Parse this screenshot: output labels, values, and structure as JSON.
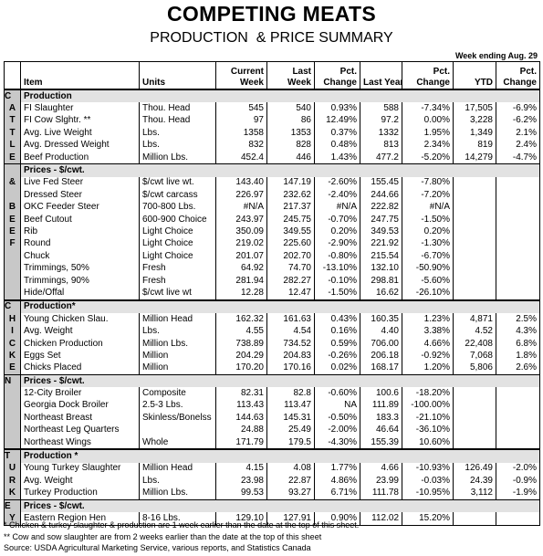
{
  "header": {
    "title": "COMPETING MEATS",
    "subtitle": "PRODUCTION  & PRICE SUMMARY",
    "week": "Week ending Aug. 29"
  },
  "table": {
    "columns": [
      [
        "Item"
      ],
      [
        "Units"
      ],
      [
        "Current",
        "Week"
      ],
      [
        "Last",
        "Week"
      ],
      [
        "Pct.",
        "Change"
      ],
      [
        "Last Year"
      ],
      [
        "Pct.",
        "Change"
      ],
      [
        "YTD"
      ],
      [
        "Pct.",
        "Change"
      ]
    ],
    "groups": [
      {
        "rows": [
          {
            "side": "C",
            "cells": [
              "Production"
            ]
          },
          {
            "side": "A",
            "cells": [
              "FI Slaughter",
              "Thou. Head",
              "545",
              "540",
              "0.93%",
              "588",
              "-7.34%",
              "17,505",
              "-6.9%"
            ]
          },
          {
            "side": "T",
            "cells": [
              "FI Cow Slghtr. **",
              "Thou. Head",
              "97",
              "86",
              "12.49%",
              "97.2",
              "0.00%",
              "3,228",
              "-6.2%"
            ]
          },
          {
            "side": "T",
            "cells": [
              "Avg. Live Weight",
              "Lbs.",
              "1358",
              "1353",
              "0.37%",
              "1332",
              "1.95%",
              "1,349",
              "2.1%"
            ]
          },
          {
            "side": "L",
            "cells": [
              "Avg. Dressed Weight",
              "Lbs.",
              "832",
              "828",
              "0.48%",
              "813",
              "2.34%",
              "819",
              "2.4%"
            ]
          },
          {
            "side": "E",
            "cells": [
              "Beef Production",
              "Million Lbs.",
              "452.4",
              "446",
              "1.43%",
              "477.2",
              "-5.20%",
              "14,279",
              "-4.7%"
            ]
          },
          {
            "cells": [
              "Prices - $/cwt."
            ]
          },
          {
            "side": "&",
            "cells": [
              "Live Fed Steer",
              "$/cwt live wt.",
              "143.40",
              "147.19",
              "-2.60%",
              "155.45",
              "-7.80%"
            ]
          },
          {
            "cells": [
              "Dressed Steer",
              "$/cwt carcass",
              "226.97",
              "232.62",
              "-2.40%",
              "244.66",
              "-7.20%"
            ]
          },
          {
            "side": "B",
            "cells": [
              "OKC Feeder Steer",
              "700-800 Lbs.",
              "#N/A",
              "217.37",
              "#N/A",
              "222.82",
              "#N/A"
            ]
          },
          {
            "side": "E",
            "cells": [
              "Beef Cutout",
              "600-900 Choice",
              "243.97",
              "245.75",
              "-0.70%",
              "247.75",
              "-1.50%"
            ]
          },
          {
            "side": "E",
            "cells": [
              "Rib",
              "Light Choice",
              "350.09",
              "349.55",
              "0.20%",
              "349.53",
              "0.20%"
            ]
          },
          {
            "side": "F",
            "cells": [
              "Round",
              "Light Choice",
              "219.02",
              "225.60",
              "-2.90%",
              "221.92",
              "-1.30%"
            ]
          },
          {
            "cells": [
              "Chuck",
              "Light Choice",
              "201.07",
              "202.70",
              "-0.80%",
              "215.54",
              "-6.70%"
            ]
          },
          {
            "cells": [
              "Trimmings, 50%",
              "Fresh",
              "64.92",
              "74.70",
              "-13.10%",
              "132.10",
              "-50.90%"
            ]
          },
          {
            "cells": [
              "Trimmings, 90%",
              "Fresh",
              "281.94",
              "282.27",
              "-0.10%",
              "298.81",
              "-5.60%"
            ]
          },
          {
            "cells": [
              "Hide/Offal",
              "$/cwt live wt",
              "12.28",
              "12.47",
              "-1.50%",
              "16.62",
              "-26.10%"
            ]
          }
        ]
      },
      {
        "rows": [
          {
            "side": "C",
            "cells": [
              "Production*"
            ]
          },
          {
            "side": "H",
            "cells": [
              "Young Chicken Slau.",
              "Million Head",
              "162.32",
              "161.63",
              "0.43%",
              "160.35",
              "1.23%",
              "4,871",
              "2.5%"
            ]
          },
          {
            "side": "I",
            "cells": [
              "Avg. Weight",
              "Lbs.",
              "4.55",
              "4.54",
              "0.16%",
              "4.40",
              "3.38%",
              "4.52",
              "4.3%"
            ]
          },
          {
            "side": "C",
            "cells": [
              "Chicken Production",
              "Million Lbs.",
              "738.89",
              "734.52",
              "0.59%",
              "706.00",
              "4.66%",
              "22,408",
              "6.8%"
            ]
          },
          {
            "side": "K",
            "cells": [
              "Eggs Set",
              "Million",
              "204.29",
              "204.83",
              "-0.26%",
              "206.18",
              "-0.92%",
              "7,068",
              "1.8%"
            ]
          },
          {
            "side": "E",
            "cells": [
              "Chicks Placed",
              "Million",
              "170.20",
              "170.16",
              "0.02%",
              "168.17",
              "1.20%",
              "5,806",
              "2.6%"
            ]
          },
          {
            "side": "N",
            "cells": [
              "Prices - $/cwt."
            ]
          },
          {
            "cells": [
              "12-City Broiler",
              "Composite",
              "82.31",
              "82.8",
              "-0.60%",
              "100.6",
              "-18.20%"
            ]
          },
          {
            "cells": [
              "Georgia Dock Broiler",
              "2.5-3 Lbs.",
              "113.43",
              "113.47",
              "NA",
              "111.89",
              "-100.00%"
            ]
          },
          {
            "cells": [
              "Northeast Breast",
              "Skinless/Bonelss",
              "144.63",
              "145.31",
              "-0.50%",
              "183.3",
              "-21.10%"
            ]
          },
          {
            "cells": [
              "Northeast Leg Quarters",
              null,
              "24.88",
              "25.49",
              "-2.00%",
              "46.64",
              "-36.10%"
            ]
          },
          {
            "cells": [
              "Northeast Wings",
              "Whole",
              "171.79",
              "179.5",
              "-4.30%",
              "155.39",
              "10.60%"
            ]
          }
        ]
      },
      {
        "rows": [
          {
            "side": "T",
            "cells": [
              "Production *"
            ]
          },
          {
            "side": "U",
            "cells": [
              "Young Turkey Slaughter",
              "Million Head",
              "4.15",
              "4.08",
              "1.77%",
              "4.66",
              "-10.93%",
              "126.49",
              "-2.0%"
            ]
          },
          {
            "side": "R",
            "cells": [
              "Avg. Weight",
              "Lbs.",
              "23.98",
              "22.87",
              "4.86%",
              "23.99",
              "-0.03%",
              "24.39",
              "-0.9%"
            ]
          },
          {
            "side": "K",
            "cells": [
              "Turkey Production",
              "Million Lbs.",
              "99.53",
              "93.27",
              "6.71%",
              "111.78",
              "-10.95%",
              "3,112",
              "-1.9%"
            ]
          },
          {
            "side": "E",
            "cells": [
              "Prices - $/cwt."
            ]
          },
          {
            "side": "Y",
            "cells": [
              "Eastern Region Hen",
              "8-16 Lbs.",
              "129.10",
              "127.91",
              "0.90%",
              "112.02",
              "15.20%"
            ]
          }
        ]
      }
    ]
  },
  "footnotes": [
    "* Chicken & turkey slaughter & production are 1 week earlier than the date at the top of this sheet.",
    "** Cow and sow slaughter are from 2 weeks earlier than the date at the top of this sheet",
    "Source: USDA Agricultural Marketing Service, various reports, and Statistics Canada"
  ]
}
